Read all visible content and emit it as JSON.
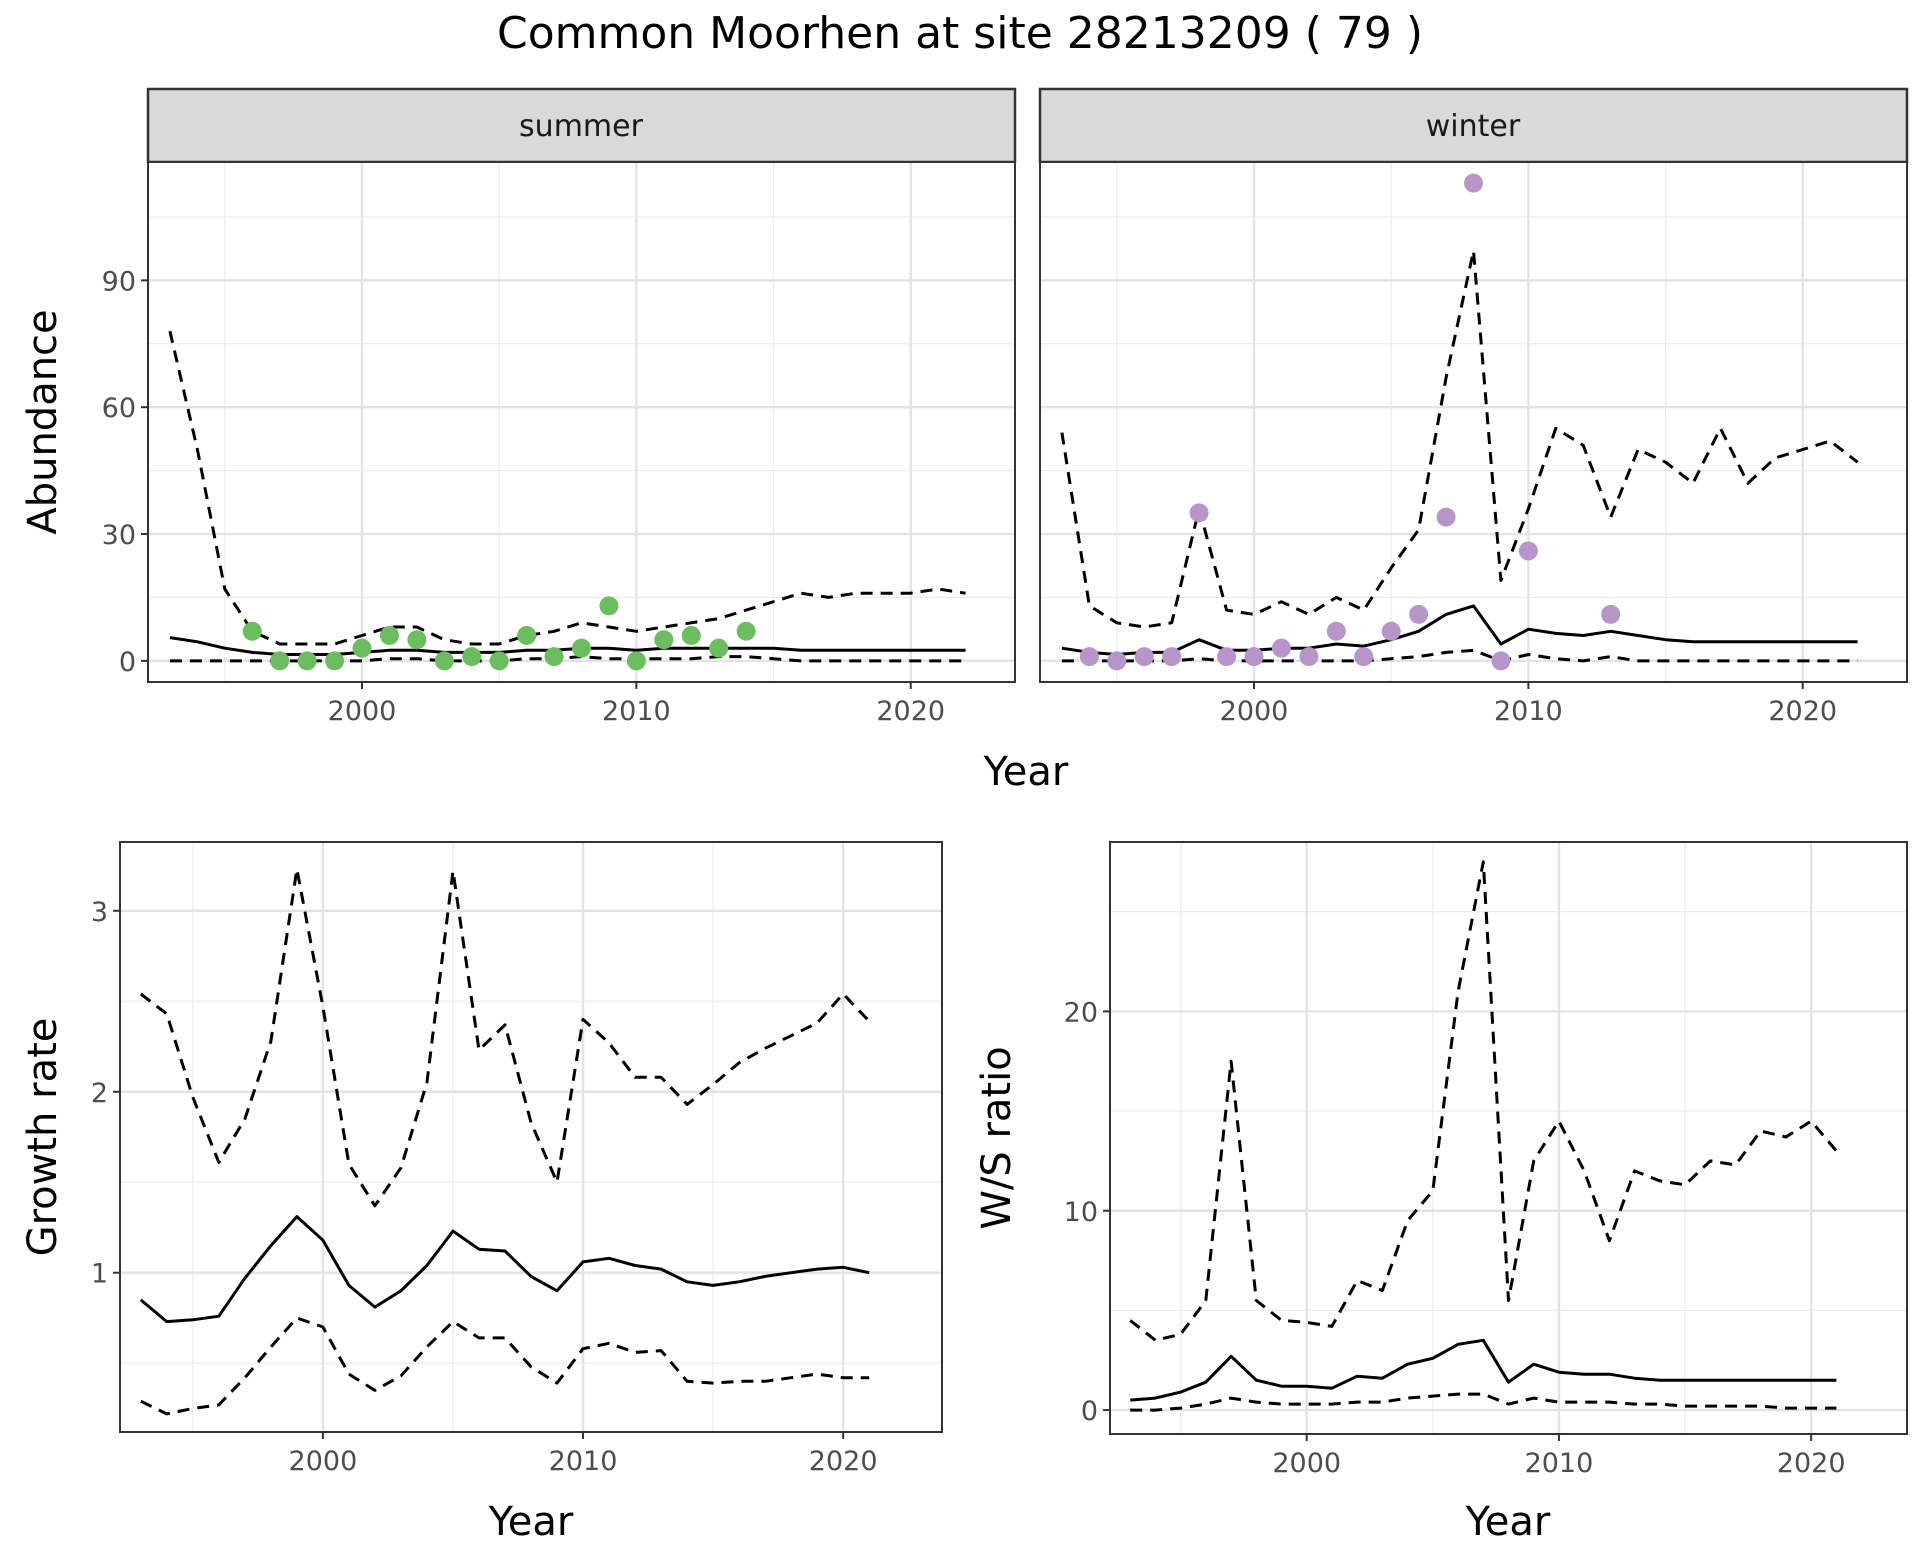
{
  "title": "Common Moorhen at site 28213209 ( 79 )",
  "chart_data": [
    {
      "id": "abundance",
      "type": "line",
      "ylabel": "Abundance",
      "xlabel": "Year",
      "xlim": [
        1992.2,
        2023.8
      ],
      "ylim": [
        -5,
        118
      ],
      "x_ticks": [
        2000,
        2010,
        2020
      ],
      "y_ticks": [
        0,
        30,
        60,
        90
      ],
      "facets": [
        {
          "label": "summer",
          "point_color": "#6cbd5f",
          "lines": {
            "x": [
              1993,
              1994,
              1995,
              1996,
              1997,
              1998,
              1999,
              2000,
              2001,
              2002,
              2003,
              2004,
              2005,
              2006,
              2007,
              2008,
              2009,
              2010,
              2011,
              2012,
              2013,
              2014,
              2015,
              2016,
              2017,
              2018,
              2019,
              2020,
              2021,
              2022
            ],
            "upper": [
              78,
              50,
              17,
              7,
              4,
              4,
              4,
              6,
              8,
              8,
              5,
              4,
              4,
              6,
              7,
              9,
              8,
              7,
              8,
              9,
              10,
              12,
              14,
              16,
              15,
              16,
              16,
              16,
              17,
              16
            ],
            "estimate": [
              5.5,
              4.5,
              3,
              2,
              1.5,
              1.5,
              1.5,
              2,
              2.5,
              2.5,
              2,
              2,
              2,
              2.5,
              2.5,
              3,
              3,
              2.5,
              3,
              3,
              3,
              3,
              3,
              2.5,
              2.5,
              2.5,
              2.5,
              2.5,
              2.5,
              2.5
            ],
            "lower": [
              0,
              0,
              0,
              0,
              0,
              0,
              0,
              0,
              0.5,
              0.5,
              0,
              0,
              0,
              0.5,
              0.5,
              1,
              0.5,
              0.5,
              0.5,
              0.5,
              1,
              1,
              0.5,
              0,
              0,
              0,
              0,
              0,
              0,
              0
            ]
          },
          "points": {
            "x": [
              1996,
              1997,
              1998,
              1999,
              2000,
              2001,
              2002,
              2003,
              2004,
              2005,
              2006,
              2007,
              2008,
              2009,
              2010,
              2011,
              2012,
              2013,
              2014
            ],
            "y": [
              7,
              0,
              0,
              0,
              3,
              6,
              5,
              0,
              1,
              0,
              6,
              1,
              3,
              13,
              0,
              5,
              6,
              3,
              7
            ]
          }
        },
        {
          "label": "winter",
          "point_color": "#b795c9",
          "lines": {
            "x": [
              1993,
              1994,
              1995,
              1996,
              1997,
              1998,
              1999,
              2000,
              2001,
              2002,
              2003,
              2004,
              2005,
              2006,
              2007,
              2008,
              2009,
              2010,
              2011,
              2012,
              2013,
              2014,
              2015,
              2016,
              2017,
              2018,
              2019,
              2020,
              2021,
              2022
            ],
            "upper": [
              54,
              13,
              9,
              8,
              9,
              36,
              12,
              11,
              14,
              11,
              15,
              12,
              22,
              31,
              67,
              97,
              19,
              36,
              55,
              51,
              34,
              50,
              47,
              42,
              55,
              42,
              48,
              50,
              52,
              47
            ],
            "estimate": [
              3,
              2,
              1.5,
              2,
              2,
              5,
              2.5,
              2.5,
              3,
              3,
              4,
              3.5,
              5,
              7,
              11,
              13,
              4,
              7.5,
              6.5,
              6,
              7,
              6,
              5,
              4.5,
              4.5,
              4.5,
              4.5,
              4.5,
              4.5,
              4.5
            ],
            "lower": [
              0,
              0,
              0,
              0,
              0,
              0.5,
              0,
              0,
              0,
              0,
              0,
              0,
              0.5,
              1,
              2,
              2.5,
              0,
              1.5,
              0.5,
              0,
              1,
              0,
              0,
              0,
              0,
              0,
              0,
              0,
              0,
              0
            ]
          },
          "points": {
            "x": [
              1994,
              1995,
              1996,
              1997,
              1998,
              1999,
              2000,
              2001,
              2002,
              2003,
              2004,
              2005,
              2006,
              2007,
              2008,
              2009,
              2010,
              2013
            ],
            "y": [
              1,
              0,
              1,
              1,
              35,
              1,
              1,
              3,
              1,
              7,
              1,
              7,
              11,
              34,
              113,
              0,
              26,
              11
            ]
          }
        }
      ]
    },
    {
      "id": "growth",
      "type": "line",
      "ylabel": "Growth rate",
      "xlabel": "Year",
      "xlim": [
        1992.2,
        2023.8
      ],
      "ylim": [
        0.12,
        3.38
      ],
      "x_ticks": [
        2000,
        2010,
        2020
      ],
      "y_ticks": [
        1,
        2,
        3
      ],
      "x": [
        1993,
        1994,
        1995,
        1996,
        1997,
        1998,
        1999,
        2000,
        2001,
        2002,
        2003,
        2004,
        2005,
        2006,
        2007,
        2008,
        2009,
        2010,
        2011,
        2012,
        2013,
        2014,
        2015,
        2016,
        2017,
        2018,
        2019,
        2020,
        2021
      ],
      "upper": [
        2.54,
        2.43,
        1.97,
        1.61,
        1.85,
        2.28,
        3.23,
        2.47,
        1.6,
        1.37,
        1.58,
        2.05,
        3.22,
        2.23,
        2.37,
        1.83,
        1.5,
        2.4,
        2.27,
        2.08,
        2.08,
        1.93,
        2.04,
        2.16,
        2.24,
        2.31,
        2.38,
        2.54,
        2.39
      ],
      "estimate": [
        0.85,
        0.73,
        0.74,
        0.76,
        0.97,
        1.15,
        1.31,
        1.18,
        0.93,
        0.81,
        0.9,
        1.04,
        1.23,
        1.13,
        1.12,
        0.98,
        0.9,
        1.06,
        1.08,
        1.04,
        1.02,
        0.95,
        0.93,
        0.95,
        0.98,
        1.0,
        1.02,
        1.03,
        1.0
      ],
      "lower": [
        0.29,
        0.22,
        0.25,
        0.27,
        0.42,
        0.59,
        0.75,
        0.7,
        0.44,
        0.35,
        0.43,
        0.59,
        0.73,
        0.64,
        0.64,
        0.48,
        0.39,
        0.58,
        0.61,
        0.56,
        0.57,
        0.4,
        0.39,
        0.4,
        0.4,
        0.42,
        0.44,
        0.42,
        0.42
      ]
    },
    {
      "id": "ratio",
      "type": "line",
      "ylabel": "W/S ratio",
      "xlabel": "Year",
      "xlim": [
        1992.2,
        2023.8
      ],
      "ylim": [
        -1.2,
        28.5
      ],
      "x_ticks": [
        2000,
        2010,
        2020
      ],
      "y_ticks": [
        0,
        10,
        20
      ],
      "x": [
        1993,
        1994,
        1995,
        1996,
        1997,
        1998,
        1999,
        2000,
        2001,
        2002,
        2003,
        2004,
        2005,
        2006,
        2007,
        2008,
        2009,
        2010,
        2011,
        2012,
        2013,
        2014,
        2015,
        2016,
        2017,
        2018,
        2019,
        2020,
        2021
      ],
      "upper": [
        4.5,
        3.5,
        3.8,
        5.5,
        17.5,
        5.5,
        4.5,
        4.4,
        4.2,
        6.5,
        6.0,
        9.5,
        11.0,
        21.0,
        27.5,
        5.5,
        12.5,
        14.5,
        12.0,
        8.5,
        12.0,
        11.5,
        11.3,
        12.5,
        12.3,
        14.0,
        13.7,
        14.5,
        13.0
      ],
      "estimate": [
        0.5,
        0.6,
        0.9,
        1.4,
        2.7,
        1.5,
        1.2,
        1.2,
        1.1,
        1.7,
        1.6,
        2.3,
        2.6,
        3.3,
        3.5,
        1.4,
        2.3,
        1.9,
        1.8,
        1.8,
        1.6,
        1.5,
        1.5,
        1.5,
        1.5,
        1.5,
        1.5,
        1.5,
        1.5
      ],
      "lower": [
        0.0,
        0.0,
        0.1,
        0.3,
        0.6,
        0.4,
        0.3,
        0.3,
        0.3,
        0.4,
        0.4,
        0.6,
        0.7,
        0.8,
        0.8,
        0.3,
        0.6,
        0.4,
        0.4,
        0.4,
        0.3,
        0.3,
        0.2,
        0.2,
        0.2,
        0.2,
        0.1,
        0.1,
        0.1
      ]
    }
  ]
}
